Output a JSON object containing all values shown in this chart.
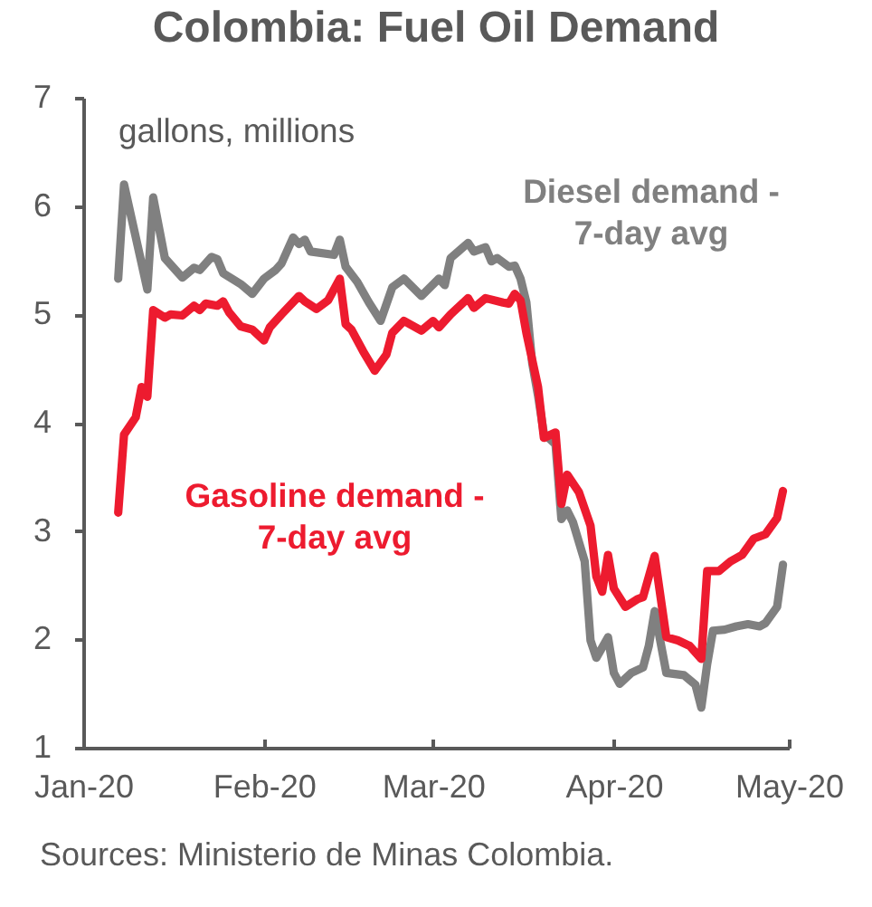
{
  "chart_data": {
    "type": "line",
    "title": "Colombia: Fuel Oil Demand",
    "ylabel": "gallons, millions",
    "annotations": [
      "Sources: Ministerio de Minas Colombia."
    ],
    "xlim": [
      "2020-01-01",
      "2020-05-01"
    ],
    "xticks": [
      {
        "value": "2020-01-01",
        "label": "Jan-20"
      },
      {
        "value": "2020-02-01",
        "label": "Feb-20"
      },
      {
        "value": "2020-03-01",
        "label": "Mar-20"
      },
      {
        "value": "2020-04-01",
        "label": "Apr-20"
      },
      {
        "value": "2020-05-01",
        "label": "May-20"
      }
    ],
    "ylim": [
      1,
      7
    ],
    "yticks": [
      1,
      2,
      3,
      4,
      5,
      6,
      7
    ],
    "series": [
      {
        "name": "Diesel demand - 7-day avg",
        "color": "#808080",
        "x": [
          "2020-01-07",
          "2020-01-08",
          "2020-01-12",
          "2020-01-13",
          "2020-01-15",
          "2020-01-18",
          "2020-01-20",
          "2020-01-21",
          "2020-01-23",
          "2020-01-24",
          "2020-01-25",
          "2020-01-28",
          "2020-01-30",
          "2020-02-01",
          "2020-02-03",
          "2020-02-04",
          "2020-02-06",
          "2020-02-07",
          "2020-02-08",
          "2020-02-09",
          "2020-02-13",
          "2020-02-14",
          "2020-02-15",
          "2020-02-17",
          "2020-02-19",
          "2020-02-21",
          "2020-02-23",
          "2020-02-25",
          "2020-02-28",
          "2020-03-02",
          "2020-03-03",
          "2020-03-04",
          "2020-03-07",
          "2020-03-08",
          "2020-03-10",
          "2020-03-11",
          "2020-03-12",
          "2020-03-14",
          "2020-03-15",
          "2020-03-16",
          "2020-03-17",
          "2020-03-18",
          "2020-03-19",
          "2020-03-20",
          "2020-03-21",
          "2020-03-22",
          "2020-03-23",
          "2020-03-24",
          "2020-03-25",
          "2020-03-27",
          "2020-03-28",
          "2020-03-29",
          "2020-03-31",
          "2020-04-01",
          "2020-04-02",
          "2020-04-04",
          "2020-04-06",
          "2020-04-07",
          "2020-04-08",
          "2020-04-10",
          "2020-04-13",
          "2020-04-15",
          "2020-04-16",
          "2020-04-17",
          "2020-04-18",
          "2020-04-20",
          "2020-04-22",
          "2020-04-24",
          "2020-04-26",
          "2020-04-27",
          "2020-04-29",
          "2020-04-30"
        ],
        "values": [
          5.33,
          6.2,
          5.23,
          6.08,
          5.52,
          5.34,
          5.43,
          5.41,
          5.53,
          5.51,
          5.38,
          5.28,
          5.19,
          5.33,
          5.41,
          5.47,
          5.71,
          5.65,
          5.69,
          5.58,
          5.55,
          5.69,
          5.44,
          5.3,
          5.11,
          4.94,
          5.25,
          5.33,
          5.17,
          5.33,
          5.27,
          5.52,
          5.66,
          5.58,
          5.62,
          5.49,
          5.52,
          5.44,
          5.45,
          5.33,
          5.11,
          4.55,
          4.25,
          3.9,
          3.85,
          3.8,
          3.11,
          3.19,
          3.08,
          2.72,
          1.99,
          1.83,
          2.02,
          1.69,
          1.59,
          1.69,
          1.74,
          1.94,
          2.26,
          1.69,
          1.67,
          1.58,
          1.37,
          1.77,
          2.08,
          2.09,
          2.12,
          2.14,
          2.12,
          2.15,
          2.3,
          2.69
        ]
      },
      {
        "name": "Gasoline demand - 7-day avg",
        "color": "#ed1b2f",
        "x": [
          "2020-01-07",
          "2020-01-08",
          "2020-01-10",
          "2020-01-11",
          "2020-01-12",
          "2020-01-13",
          "2020-01-15",
          "2020-01-16",
          "2020-01-18",
          "2020-01-20",
          "2020-01-21",
          "2020-01-22",
          "2020-01-24",
          "2020-01-25",
          "2020-01-26",
          "2020-01-28",
          "2020-01-30",
          "2020-02-01",
          "2020-02-02",
          "2020-02-04",
          "2020-02-07",
          "2020-02-08",
          "2020-02-10",
          "2020-02-12",
          "2020-02-14",
          "2020-02-15",
          "2020-02-16",
          "2020-02-18",
          "2020-02-20",
          "2020-02-22",
          "2020-02-23",
          "2020-02-25",
          "2020-02-28",
          "2020-03-01",
          "2020-03-02",
          "2020-03-04",
          "2020-03-07",
          "2020-03-08",
          "2020-03-10",
          "2020-03-13",
          "2020-03-14",
          "2020-03-15",
          "2020-03-16",
          "2020-03-17",
          "2020-03-19",
          "2020-03-20",
          "2020-03-22",
          "2020-03-23",
          "2020-03-24",
          "2020-03-26",
          "2020-03-28",
          "2020-03-29",
          "2020-03-30",
          "2020-03-31",
          "2020-04-01",
          "2020-04-03",
          "2020-04-05",
          "2020-04-06",
          "2020-04-08",
          "2020-04-10",
          "2020-04-12",
          "2020-04-14",
          "2020-04-16",
          "2020-04-17",
          "2020-04-19",
          "2020-04-21",
          "2020-04-23",
          "2020-04-25",
          "2020-04-27",
          "2020-04-29",
          "2020-04-30"
        ],
        "values": [
          3.17,
          3.89,
          4.05,
          4.33,
          4.24,
          5.04,
          4.97,
          5.0,
          4.99,
          5.08,
          5.04,
          5.1,
          5.08,
          5.12,
          5.02,
          4.89,
          4.86,
          4.76,
          4.88,
          5.0,
          5.17,
          5.12,
          5.05,
          5.13,
          5.33,
          4.91,
          4.86,
          4.66,
          4.48,
          4.63,
          4.83,
          4.94,
          4.85,
          4.94,
          4.88,
          5.0,
          5.15,
          5.06,
          5.15,
          5.11,
          5.1,
          5.19,
          5.13,
          4.83,
          4.33,
          3.86,
          3.91,
          3.25,
          3.52,
          3.36,
          3.05,
          2.58,
          2.44,
          2.78,
          2.47,
          2.3,
          2.37,
          2.39,
          2.77,
          2.02,
          1.99,
          1.94,
          1.82,
          2.63,
          2.63,
          2.72,
          2.78,
          2.93,
          2.97,
          3.12,
          3.37
        ]
      }
    ]
  }
}
